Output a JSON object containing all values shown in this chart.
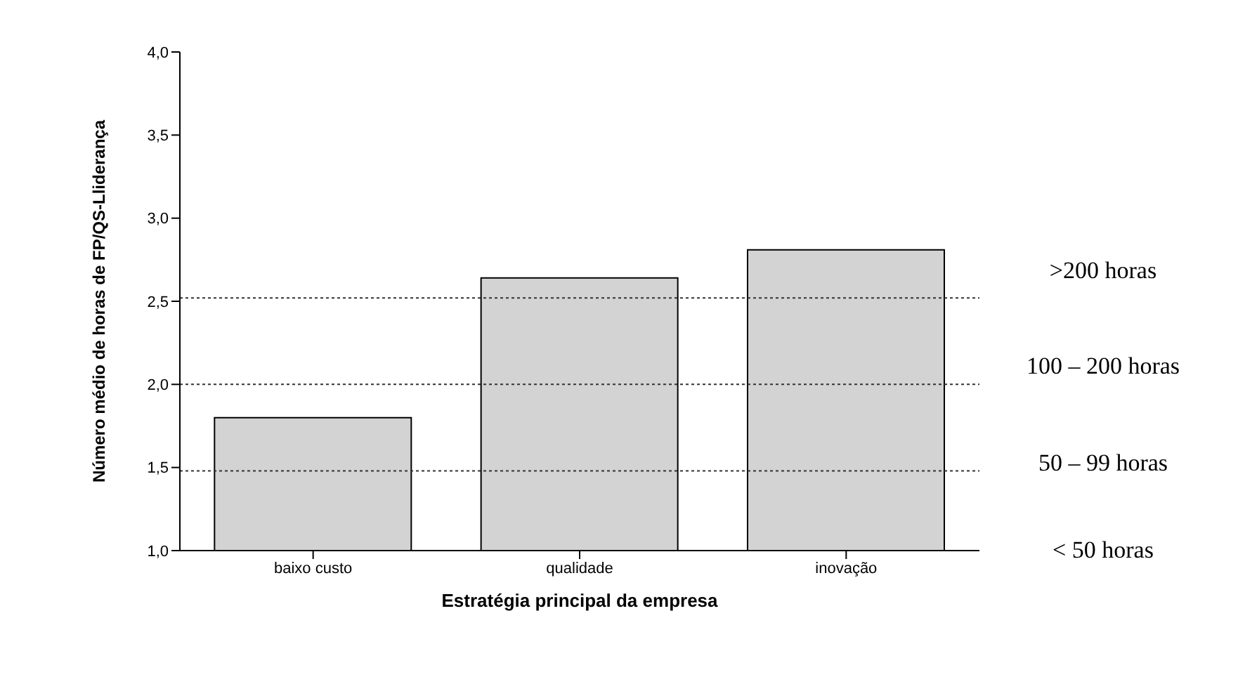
{
  "chart_data": {
    "type": "bar",
    "xlabel": "Estratégia principal da empresa",
    "ylabel": "Número médio de horas de FP/QS-Lliderança",
    "categories": [
      "baixo custo",
      "qualidade",
      "inovação"
    ],
    "values": [
      1.8,
      2.64,
      2.81
    ],
    "color": "#d3d3d3",
    "ylim": [
      1.0,
      4.0
    ],
    "yticks": [
      {
        "value": 1.0,
        "label": "1,0"
      },
      {
        "value": 1.5,
        "label": "1,5"
      },
      {
        "value": 2.0,
        "label": "2,0"
      },
      {
        "value": 2.5,
        "label": "2,5"
      },
      {
        "value": 3.0,
        "label": "3,0"
      },
      {
        "value": 3.5,
        "label": "3,5"
      },
      {
        "value": 4.0,
        "label": "4,0"
      }
    ],
    "grid": false,
    "legend": false,
    "ref_lines": [
      {
        "axis": "y",
        "value": 2.52,
        "line_style": "dotted",
        "color": "#333333"
      },
      {
        "axis": "y",
        "value": 2.0,
        "line_style": "dotted",
        "color": "#333333"
      },
      {
        "axis": "y",
        "value": 1.48,
        "line_style": "dotted",
        "color": "#333333"
      }
    ],
    "annotations": [
      ">200 horas",
      "100 – 200 horas",
      "50 – 99 horas",
      "< 50 horas"
    ]
  }
}
